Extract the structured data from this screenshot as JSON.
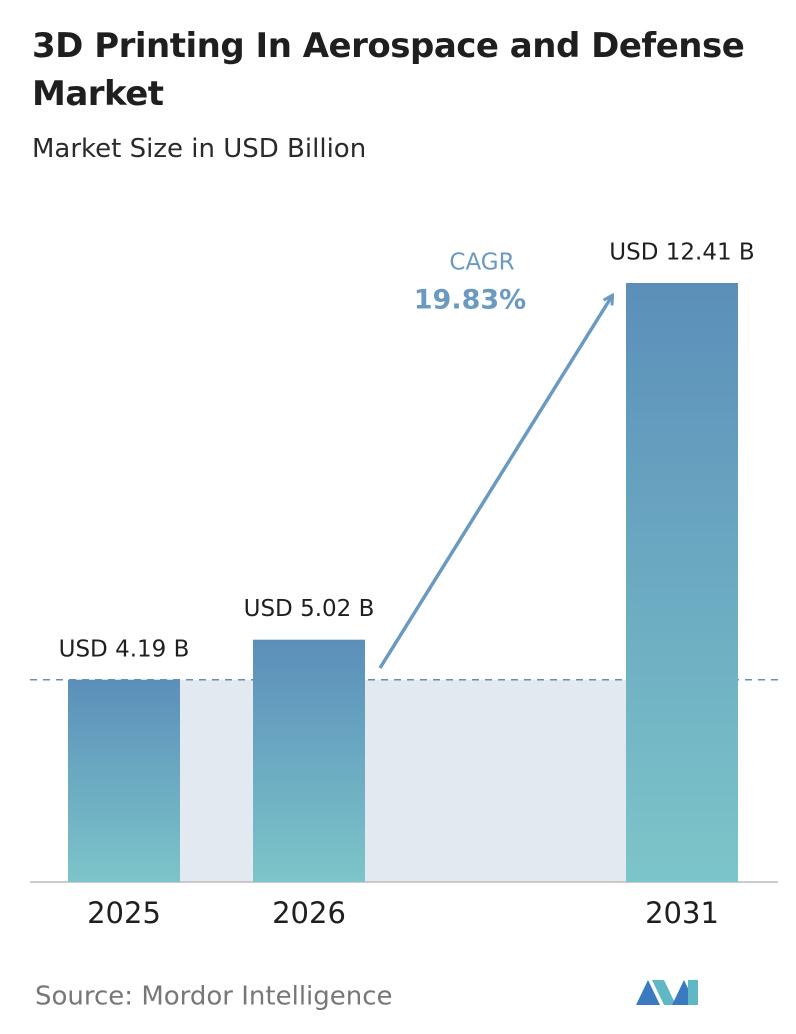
{
  "chart_data": {
    "type": "bar",
    "title": "3D Printing In Aerospace and Defense Market",
    "subtitle": "Market Size in USD Billion",
    "categories": [
      "2025",
      "2026",
      "2031"
    ],
    "values": [
      4.19,
      5.02,
      12.41
    ],
    "value_labels": [
      "USD 4.19 B",
      "USD 5.02 B",
      "USD 12.41 B"
    ],
    "color": "#5b8fba",
    "annotations": {
      "cagr_label": "CAGR",
      "cagr_value": "19.83%"
    },
    "source": "Source:  Mordor Intelligence"
  }
}
